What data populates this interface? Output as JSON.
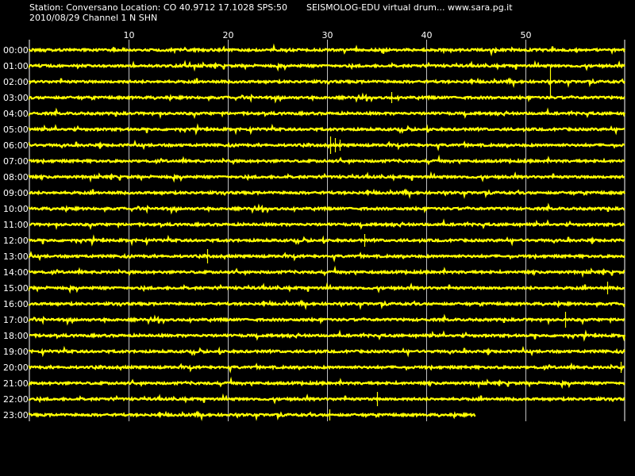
{
  "header": {
    "station_line": "Station: Conversano Location: CO 40.9712 17.1028 SPS:50",
    "date_channel_line": "2010/08/29  Channel 1 N SHN",
    "app_line": "SEISMOLOG-EDU virtual drum...  www.sara.pg.it"
  },
  "colors": {
    "background": "#000000",
    "trace": "#ffff00",
    "grid": "#ffffff",
    "text": "#ffffff"
  },
  "chart_data": {
    "type": "line",
    "title": "",
    "xlabel": "",
    "ylabel": "",
    "xlim": [
      0,
      60
    ],
    "x_ticks": [
      10,
      20,
      30,
      40,
      50
    ],
    "x_tick_labels": [
      "10",
      "20",
      "30",
      "40",
      "50"
    ],
    "grid": "vertical lines every 10 minutes",
    "rows": [
      "00:00",
      "01:00",
      "02:00",
      "03:00",
      "04:00",
      "05:00",
      "06:00",
      "07:00",
      "08:00",
      "09:00",
      "10:00",
      "11:00",
      "12:00",
      "13:00",
      "14:00",
      "15:00",
      "16:00",
      "17:00",
      "18:00",
      "19:00",
      "20:00",
      "21:00",
      "22:00",
      "23:00"
    ],
    "row_end_minute": [
      60,
      60,
      60,
      60,
      60,
      60,
      60,
      60,
      60,
      60,
      60,
      60,
      60,
      60,
      60,
      60,
      60,
      60,
      60,
      60,
      60,
      60,
      60,
      45
    ],
    "spikes": [
      {
        "row": "02:00",
        "minute": 52.5,
        "amp": 20
      },
      {
        "row": "03:00",
        "minute": 36.5,
        "amp": 7
      },
      {
        "row": "06:00",
        "minute": 30.3,
        "amp": 11
      },
      {
        "row": "06:00",
        "minute": 30.8,
        "amp": 9
      },
      {
        "row": "06:00",
        "minute": 31.3,
        "amp": 7
      },
      {
        "row": "12:00",
        "minute": 33.8,
        "amp": 8
      },
      {
        "row": "13:00",
        "minute": 17.9,
        "amp": 9
      },
      {
        "row": "15:00",
        "minute": 58.2,
        "amp": 8
      },
      {
        "row": "17:00",
        "minute": 54.0,
        "amp": 10
      },
      {
        "row": "20:00",
        "minute": 59.6,
        "amp": 7
      },
      {
        "row": "22:00",
        "minute": 35.0,
        "amp": 9
      },
      {
        "row": "23:00",
        "minute": 30.2,
        "amp": 7
      }
    ]
  }
}
